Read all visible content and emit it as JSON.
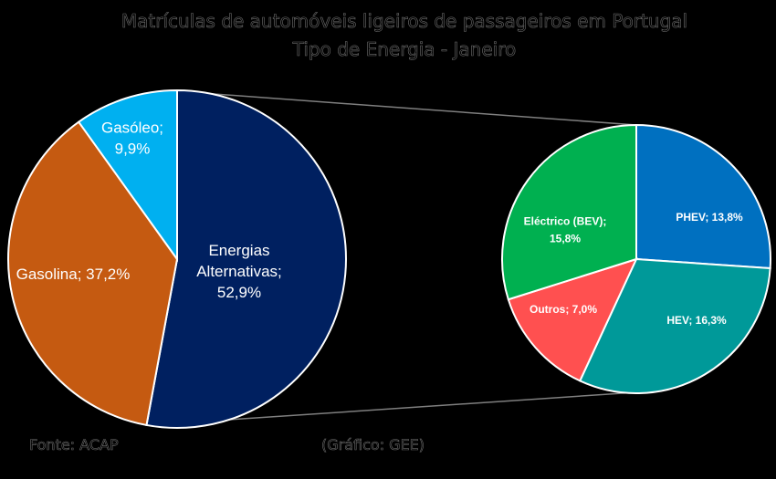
{
  "chart_data": {
    "type": "pie",
    "title": "Matrículas de automóveis ligeiros de passageiros em Portugal",
    "subtitle": "Tipo de Energia - Janeiro",
    "main": {
      "slices": [
        {
          "label": "Energias Alternativas",
          "value": 52.9,
          "display": "52,9%",
          "color": "#002060"
        },
        {
          "label": "Gasolina",
          "value": 37.2,
          "display": "37,2%",
          "color": "#C55A11"
        },
        {
          "label": "Gasóleo",
          "value": 9.9,
          "display": "9,9%",
          "color": "#00B0F0"
        }
      ]
    },
    "breakdown": {
      "of": "Energias Alternativas",
      "slices": [
        {
          "label": "PHEV",
          "value": 13.8,
          "display": "13,8%",
          "color": "#0070C0"
        },
        {
          "label": "HEV",
          "value": 16.3,
          "display": "16,3%",
          "color": "#009999"
        },
        {
          "label": "Outros",
          "value": 7.0,
          "display": "7,0%",
          "color": "#FF5050"
        },
        {
          "label": "Eléctrico (BEV)",
          "value": 15.8,
          "display": "15,8%",
          "color": "#00B050"
        }
      ]
    }
  },
  "footer": {
    "source": "Fonte: ACAP",
    "credit": "(Gráfico: GEE)"
  }
}
